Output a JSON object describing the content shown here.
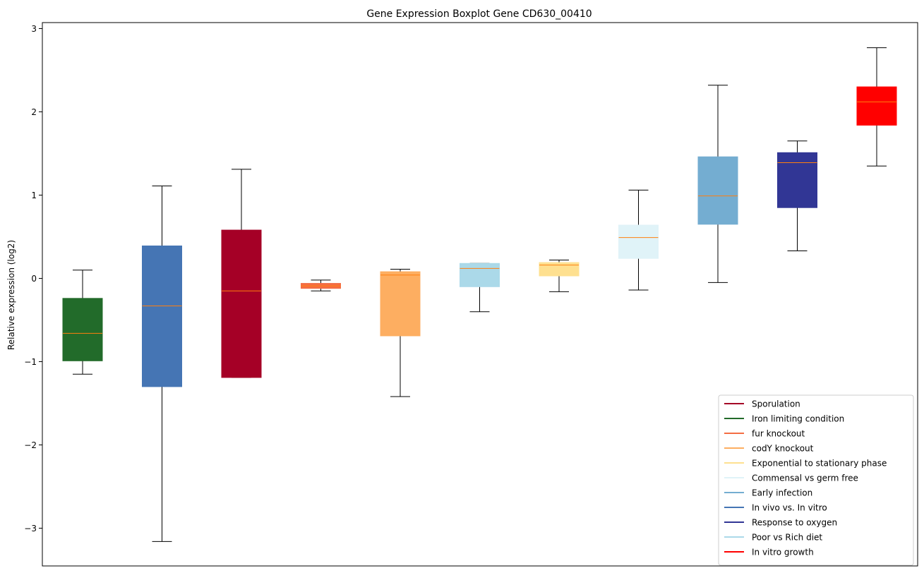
{
  "chart_data": {
    "type": "boxplot",
    "title": "Gene Expression Boxplot Gene CD630_00410",
    "xlabel": "",
    "ylabel": "Relative expression (log2)",
    "ylim": [
      -3.45,
      3.05
    ],
    "yticks": [
      -3,
      -2,
      -1,
      0,
      1,
      2,
      3
    ],
    "ytick_labels": [
      "−3",
      "−2",
      "−1",
      "0",
      "1",
      "2",
      "3"
    ],
    "median_color": "#ff7f0e",
    "boxes": [
      {
        "name": "Iron limiting condition",
        "color": "#226b2a",
        "whislo": -1.15,
        "q1": -0.99,
        "med": -0.66,
        "q3": -0.24,
        "whishi": 0.1
      },
      {
        "name": "In vivo vs. In vitro",
        "color": "#4575b4",
        "whislo": -3.16,
        "q1": -1.3,
        "med": -0.33,
        "q3": 0.39,
        "whishi": 1.11
      },
      {
        "name": "Sporulation",
        "color": "#a50026",
        "whislo": -1.19,
        "q1": -1.19,
        "med": -0.15,
        "q3": 0.58,
        "whishi": 1.31
      },
      {
        "name": "fur knockout",
        "color": "#f46d43",
        "whislo": -0.15,
        "q1": -0.12,
        "med": -0.09,
        "q3": -0.06,
        "whishi": -0.02
      },
      {
        "name": "codY knockout",
        "color": "#fdae61",
        "whislo": -1.42,
        "q1": -0.69,
        "med": 0.04,
        "q3": 0.08,
        "whishi": 0.11
      },
      {
        "name": "Poor vs Rich diet",
        "color": "#abd9e9",
        "whislo": -0.4,
        "q1": -0.1,
        "med": 0.12,
        "q3": 0.18,
        "whishi": 0.18
      },
      {
        "name": "Exponential to stationary phase",
        "color": "#fee090",
        "whislo": -0.16,
        "q1": 0.03,
        "med": 0.16,
        "q3": 0.19,
        "whishi": 0.22
      },
      {
        "name": "Commensal vs germ free",
        "color": "#e0f3f8",
        "whislo": -0.14,
        "q1": 0.24,
        "med": 0.49,
        "q3": 0.64,
        "whishi": 1.06
      },
      {
        "name": "Early infection",
        "color": "#74add1",
        "whislo": -0.05,
        "q1": 0.65,
        "med": 0.99,
        "q3": 1.46,
        "whishi": 2.32
      },
      {
        "name": "Response to oxygen",
        "color": "#313695",
        "whislo": 0.33,
        "q1": 0.85,
        "med": 1.39,
        "q3": 1.51,
        "whishi": 1.65
      },
      {
        "name": "In vitro growth",
        "color": "#ff0000",
        "whislo": 1.35,
        "q1": 1.84,
        "med": 2.12,
        "q3": 2.3,
        "whishi": 2.77
      }
    ],
    "legend": {
      "location": "lower-right",
      "entries": [
        {
          "label": "Sporulation",
          "color": "#a50026"
        },
        {
          "label": "Iron limiting condition",
          "color": "#226b2a"
        },
        {
          "label": "fur knockout",
          "color": "#f46d43"
        },
        {
          "label": "codY knockout",
          "color": "#fdae61"
        },
        {
          "label": "Exponential to stationary phase",
          "color": "#fee090"
        },
        {
          "label": "Commensal vs germ free",
          "color": "#e0f3f8"
        },
        {
          "label": "Early infection",
          "color": "#74add1"
        },
        {
          "label": "In vivo vs. In vitro",
          "color": "#4575b4"
        },
        {
          "label": "Response to oxygen",
          "color": "#313695"
        },
        {
          "label": "Poor vs Rich diet",
          "color": "#abd9e9"
        },
        {
          "label": "In vitro growth",
          "color": "#ff0000"
        }
      ]
    }
  }
}
